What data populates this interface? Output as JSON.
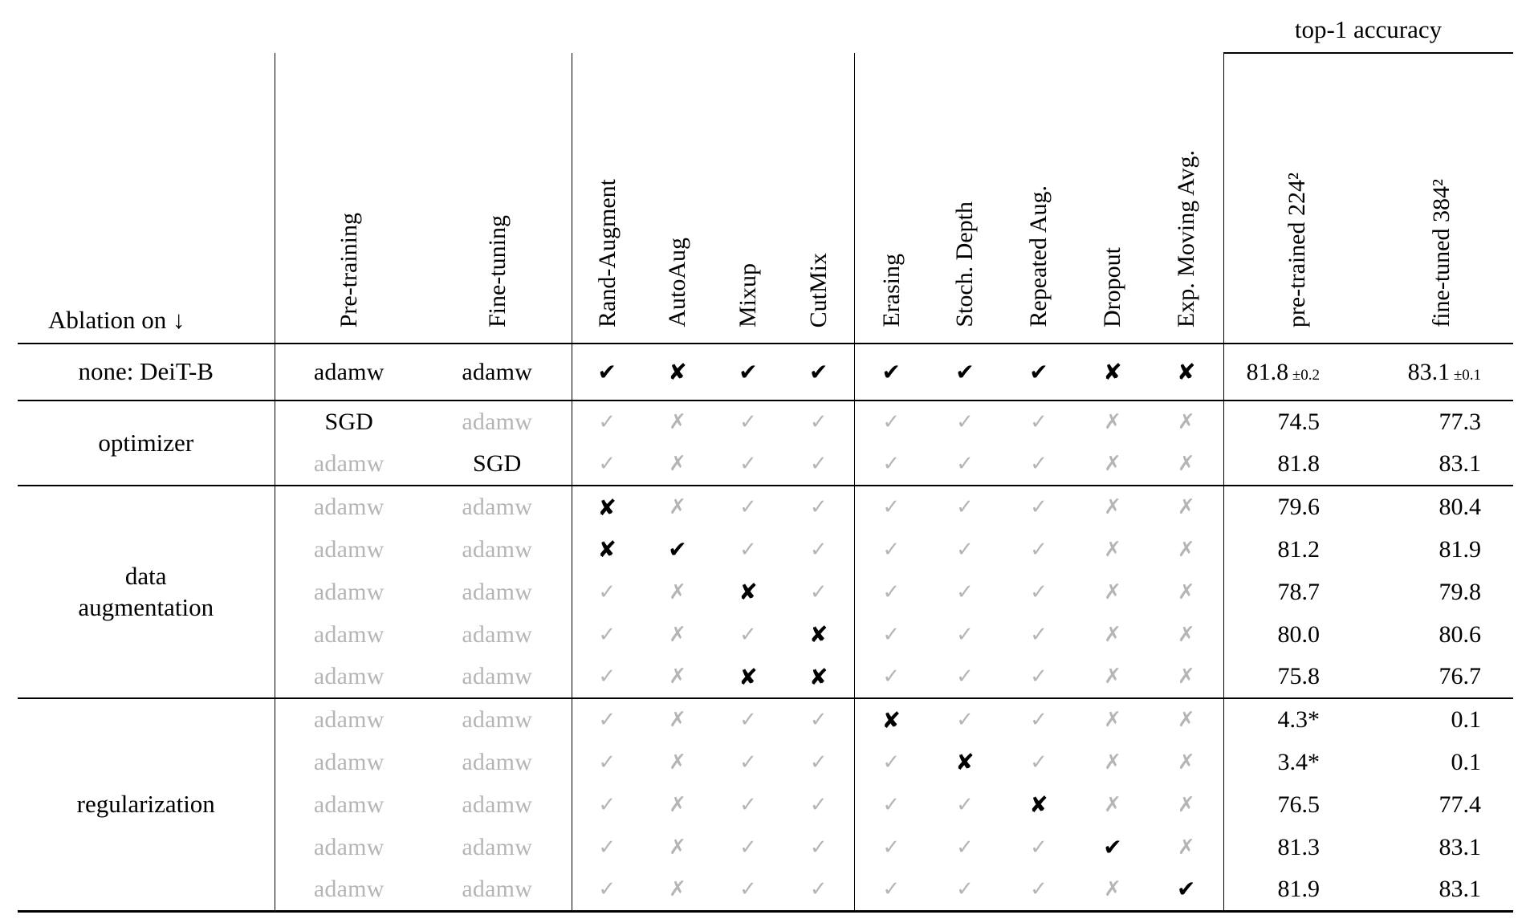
{
  "colors": {
    "text": "#000000",
    "muted": "#b5b5b5",
    "rule": "#000000",
    "background": "#ffffff"
  },
  "glyphs": {
    "check_strong": "✔",
    "cross_strong": "✘",
    "check_muted": "✓",
    "cross_muted": "✗"
  },
  "header": {
    "accuracy_group_label": "top-1 accuracy",
    "ablation_label": "Ablation on ↓"
  },
  "columns": [
    {
      "label": "Pre-training",
      "sep": true
    },
    {
      "label": "Fine-tuning",
      "sep": false
    },
    {
      "label": "Rand-Augment",
      "sep": true
    },
    {
      "label": "AutoAug",
      "sep": false
    },
    {
      "label": "Mixup",
      "sep": false
    },
    {
      "label": "CutMix",
      "sep": false
    },
    {
      "label": "Erasing",
      "sep": true
    },
    {
      "label": "Stoch. Depth",
      "sep": false
    },
    {
      "label": "Repeated Aug.",
      "sep": false
    },
    {
      "label": "Dropout",
      "sep": false
    },
    {
      "label": "Exp. Moving Avg.",
      "sep": false
    },
    {
      "label": "pre-trained 224²",
      "sep": true
    },
    {
      "label": "fine-tuned 384²",
      "sep": false
    }
  ],
  "groups": [
    {
      "label": "none: DeiT-B",
      "rows": [
        {
          "pre": {
            "t": "adamw",
            "m": false
          },
          "fine": {
            "t": "adamw",
            "m": false
          },
          "flags": [
            {
              "s": "y",
              "m": false
            },
            {
              "s": "n",
              "m": false
            },
            {
              "s": "y",
              "m": false
            },
            {
              "s": "y",
              "m": false
            },
            {
              "s": "y",
              "m": false
            },
            {
              "s": "y",
              "m": false
            },
            {
              "s": "y",
              "m": false
            },
            {
              "s": "n",
              "m": false
            },
            {
              "s": "n",
              "m": false
            }
          ],
          "acc": [
            {
              "t": "81.8",
              "pm": "±0.2"
            },
            {
              "t": "83.1",
              "pm": "±0.1"
            }
          ]
        }
      ]
    },
    {
      "label": "optimizer",
      "rows": [
        {
          "pre": {
            "t": "SGD",
            "m": false
          },
          "fine": {
            "t": "adamw",
            "m": true
          },
          "flags": [
            {
              "s": "y",
              "m": true
            },
            {
              "s": "n",
              "m": true
            },
            {
              "s": "y",
              "m": true
            },
            {
              "s": "y",
              "m": true
            },
            {
              "s": "y",
              "m": true
            },
            {
              "s": "y",
              "m": true
            },
            {
              "s": "y",
              "m": true
            },
            {
              "s": "n",
              "m": true
            },
            {
              "s": "n",
              "m": true
            }
          ],
          "acc": [
            {
              "t": "74.5"
            },
            {
              "t": "77.3"
            }
          ]
        },
        {
          "pre": {
            "t": "adamw",
            "m": true
          },
          "fine": {
            "t": "SGD",
            "m": false
          },
          "flags": [
            {
              "s": "y",
              "m": true
            },
            {
              "s": "n",
              "m": true
            },
            {
              "s": "y",
              "m": true
            },
            {
              "s": "y",
              "m": true
            },
            {
              "s": "y",
              "m": true
            },
            {
              "s": "y",
              "m": true
            },
            {
              "s": "y",
              "m": true
            },
            {
              "s": "n",
              "m": true
            },
            {
              "s": "n",
              "m": true
            }
          ],
          "acc": [
            {
              "t": "81.8"
            },
            {
              "t": "83.1"
            }
          ]
        }
      ]
    },
    {
      "label": "data\naugmentation",
      "rows": [
        {
          "pre": {
            "t": "adamw",
            "m": true
          },
          "fine": {
            "t": "adamw",
            "m": true
          },
          "flags": [
            {
              "s": "n",
              "m": false
            },
            {
              "s": "n",
              "m": true
            },
            {
              "s": "y",
              "m": true
            },
            {
              "s": "y",
              "m": true
            },
            {
              "s": "y",
              "m": true
            },
            {
              "s": "y",
              "m": true
            },
            {
              "s": "y",
              "m": true
            },
            {
              "s": "n",
              "m": true
            },
            {
              "s": "n",
              "m": true
            }
          ],
          "acc": [
            {
              "t": "79.6"
            },
            {
              "t": "80.4"
            }
          ]
        },
        {
          "pre": {
            "t": "adamw",
            "m": true
          },
          "fine": {
            "t": "adamw",
            "m": true
          },
          "flags": [
            {
              "s": "n",
              "m": false
            },
            {
              "s": "y",
              "m": false
            },
            {
              "s": "y",
              "m": true
            },
            {
              "s": "y",
              "m": true
            },
            {
              "s": "y",
              "m": true
            },
            {
              "s": "y",
              "m": true
            },
            {
              "s": "y",
              "m": true
            },
            {
              "s": "n",
              "m": true
            },
            {
              "s": "n",
              "m": true
            }
          ],
          "acc": [
            {
              "t": "81.2"
            },
            {
              "t": "81.9"
            }
          ]
        },
        {
          "pre": {
            "t": "adamw",
            "m": true
          },
          "fine": {
            "t": "adamw",
            "m": true
          },
          "flags": [
            {
              "s": "y",
              "m": true
            },
            {
              "s": "n",
              "m": true
            },
            {
              "s": "n",
              "m": false
            },
            {
              "s": "y",
              "m": true
            },
            {
              "s": "y",
              "m": true
            },
            {
              "s": "y",
              "m": true
            },
            {
              "s": "y",
              "m": true
            },
            {
              "s": "n",
              "m": true
            },
            {
              "s": "n",
              "m": true
            }
          ],
          "acc": [
            {
              "t": "78.7"
            },
            {
              "t": "79.8"
            }
          ]
        },
        {
          "pre": {
            "t": "adamw",
            "m": true
          },
          "fine": {
            "t": "adamw",
            "m": true
          },
          "flags": [
            {
              "s": "y",
              "m": true
            },
            {
              "s": "n",
              "m": true
            },
            {
              "s": "y",
              "m": true
            },
            {
              "s": "n",
              "m": false
            },
            {
              "s": "y",
              "m": true
            },
            {
              "s": "y",
              "m": true
            },
            {
              "s": "y",
              "m": true
            },
            {
              "s": "n",
              "m": true
            },
            {
              "s": "n",
              "m": true
            }
          ],
          "acc": [
            {
              "t": "80.0"
            },
            {
              "t": "80.6"
            }
          ]
        },
        {
          "pre": {
            "t": "adamw",
            "m": true
          },
          "fine": {
            "t": "adamw",
            "m": true
          },
          "flags": [
            {
              "s": "y",
              "m": true
            },
            {
              "s": "n",
              "m": true
            },
            {
              "s": "n",
              "m": false
            },
            {
              "s": "n",
              "m": false
            },
            {
              "s": "y",
              "m": true
            },
            {
              "s": "y",
              "m": true
            },
            {
              "s": "y",
              "m": true
            },
            {
              "s": "n",
              "m": true
            },
            {
              "s": "n",
              "m": true
            }
          ],
          "acc": [
            {
              "t": "75.8"
            },
            {
              "t": "76.7"
            }
          ]
        }
      ]
    },
    {
      "label": "regularization",
      "rows": [
        {
          "pre": {
            "t": "adamw",
            "m": true
          },
          "fine": {
            "t": "adamw",
            "m": true
          },
          "flags": [
            {
              "s": "y",
              "m": true
            },
            {
              "s": "n",
              "m": true
            },
            {
              "s": "y",
              "m": true
            },
            {
              "s": "y",
              "m": true
            },
            {
              "s": "n",
              "m": false
            },
            {
              "s": "y",
              "m": true
            },
            {
              "s": "y",
              "m": true
            },
            {
              "s": "n",
              "m": true
            },
            {
              "s": "n",
              "m": true
            }
          ],
          "acc": [
            {
              "t": "4.3*"
            },
            {
              "t": "0.1"
            }
          ]
        },
        {
          "pre": {
            "t": "adamw",
            "m": true
          },
          "fine": {
            "t": "adamw",
            "m": true
          },
          "flags": [
            {
              "s": "y",
              "m": true
            },
            {
              "s": "n",
              "m": true
            },
            {
              "s": "y",
              "m": true
            },
            {
              "s": "y",
              "m": true
            },
            {
              "s": "y",
              "m": true
            },
            {
              "s": "n",
              "m": false
            },
            {
              "s": "y",
              "m": true
            },
            {
              "s": "n",
              "m": true
            },
            {
              "s": "n",
              "m": true
            }
          ],
          "acc": [
            {
              "t": "3.4*"
            },
            {
              "t": "0.1"
            }
          ]
        },
        {
          "pre": {
            "t": "adamw",
            "m": true
          },
          "fine": {
            "t": "adamw",
            "m": true
          },
          "flags": [
            {
              "s": "y",
              "m": true
            },
            {
              "s": "n",
              "m": true
            },
            {
              "s": "y",
              "m": true
            },
            {
              "s": "y",
              "m": true
            },
            {
              "s": "y",
              "m": true
            },
            {
              "s": "y",
              "m": true
            },
            {
              "s": "n",
              "m": false
            },
            {
              "s": "n",
              "m": true
            },
            {
              "s": "n",
              "m": true
            }
          ],
          "acc": [
            {
              "t": "76.5"
            },
            {
              "t": "77.4"
            }
          ]
        },
        {
          "pre": {
            "t": "adamw",
            "m": true
          },
          "fine": {
            "t": "adamw",
            "m": true
          },
          "flags": [
            {
              "s": "y",
              "m": true
            },
            {
              "s": "n",
              "m": true
            },
            {
              "s": "y",
              "m": true
            },
            {
              "s": "y",
              "m": true
            },
            {
              "s": "y",
              "m": true
            },
            {
              "s": "y",
              "m": true
            },
            {
              "s": "y",
              "m": true
            },
            {
              "s": "y",
              "m": false
            },
            {
              "s": "n",
              "m": true
            }
          ],
          "acc": [
            {
              "t": "81.3"
            },
            {
              "t": "83.1"
            }
          ]
        },
        {
          "pre": {
            "t": "adamw",
            "m": true
          },
          "fine": {
            "t": "adamw",
            "m": true
          },
          "flags": [
            {
              "s": "y",
              "m": true
            },
            {
              "s": "n",
              "m": true
            },
            {
              "s": "y",
              "m": true
            },
            {
              "s": "y",
              "m": true
            },
            {
              "s": "y",
              "m": true
            },
            {
              "s": "y",
              "m": true
            },
            {
              "s": "y",
              "m": true
            },
            {
              "s": "n",
              "m": true
            },
            {
              "s": "y",
              "m": false
            }
          ],
          "acc": [
            {
              "t": "81.9"
            },
            {
              "t": "83.1"
            }
          ]
        }
      ]
    }
  ]
}
